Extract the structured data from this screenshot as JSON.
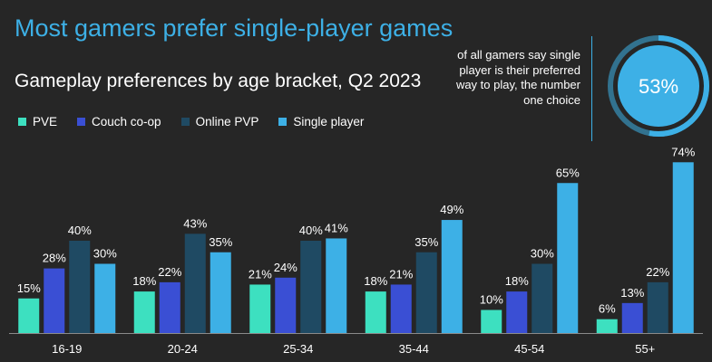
{
  "header": {
    "title": "Most gamers prefer single-player games"
  },
  "callout": {
    "text": "of all gamers say single player is their preferred way to play, the number one choice",
    "value_label": "53%",
    "value": 53,
    "ring_color": "#3db0e6",
    "inner_color": "#262626"
  },
  "colors": {
    "PVE": "#3de0c0",
    "Couch co-op": "#3a4fd4",
    "Online PVP": "#1f4a63",
    "Single player": "#3db0e6"
  },
  "chart_data": {
    "type": "bar",
    "title": "Gameplay preferences by age bracket, Q2 2023",
    "xlabel": "",
    "ylabel": "",
    "ylim": [
      0,
      80
    ],
    "grid": false,
    "legend_position": "top-left",
    "categories": [
      "16-19",
      "20-24",
      "25-34",
      "35-44",
      "45-54",
      "55+"
    ],
    "series": [
      {
        "name": "PVE",
        "values": [
          15,
          18,
          21,
          18,
          10,
          6
        ]
      },
      {
        "name": "Couch co-op",
        "values": [
          28,
          22,
          24,
          21,
          18,
          13
        ]
      },
      {
        "name": "Online PVP",
        "values": [
          40,
          43,
          40,
          35,
          30,
          22
        ]
      },
      {
        "name": "Single player",
        "values": [
          30,
          35,
          41,
          49,
          65,
          74
        ]
      }
    ]
  }
}
